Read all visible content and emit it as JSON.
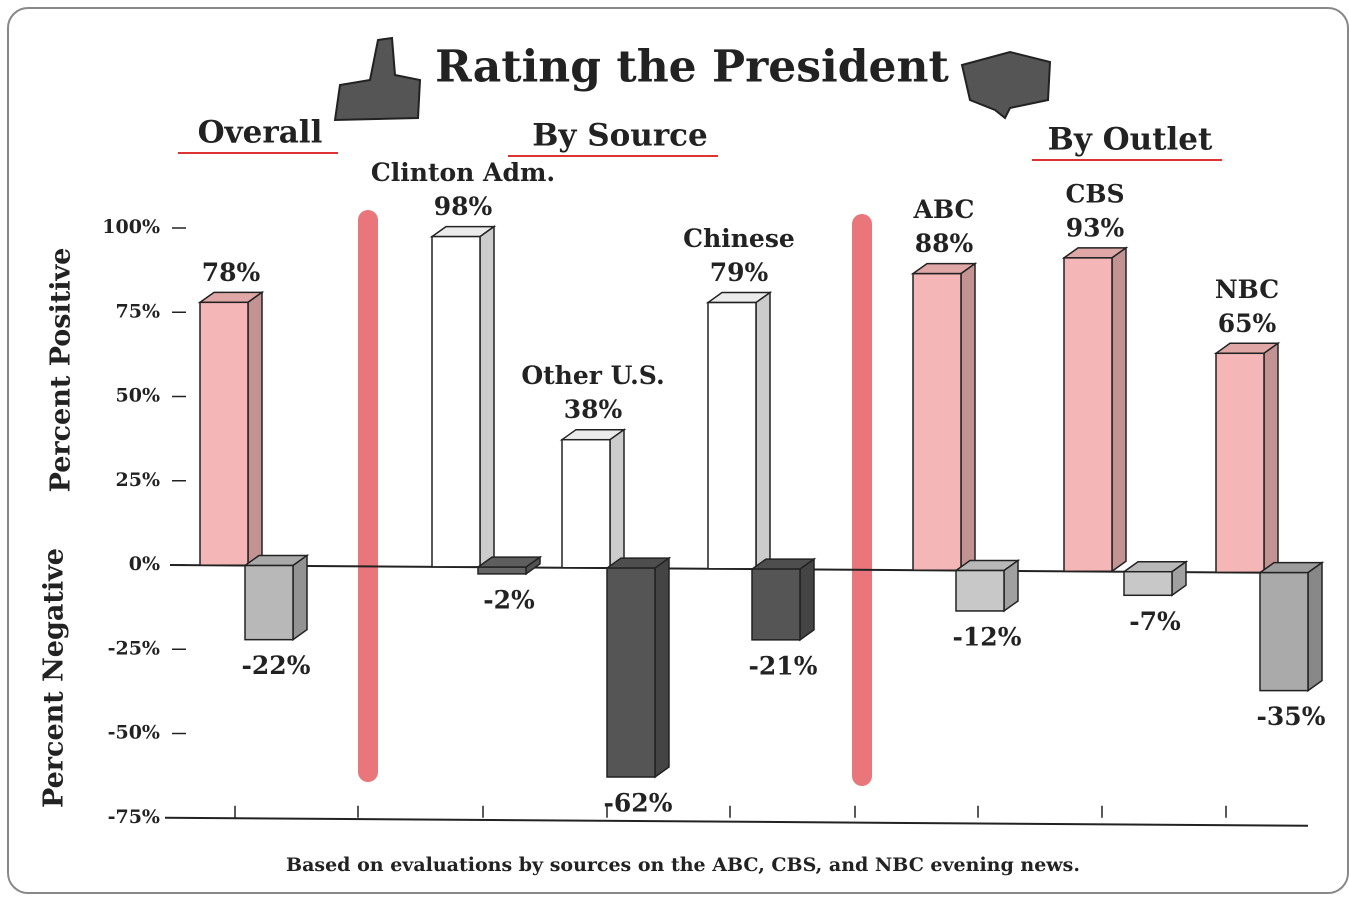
{
  "chart_data": {
    "type": "bar3d",
    "title": "Rating the President",
    "sections": [
      "Overall",
      "By Source",
      "By Outlet"
    ],
    "categories": [
      null,
      "Clinton Adm.",
      "Other U.S.",
      "Chinese",
      "ABC",
      "CBS",
      "NBC"
    ],
    "ylabel_positive": "Percent Positive",
    "ylabel_negative": "Percent Negative",
    "series": [
      {
        "values": [
          78,
          98,
          38,
          79,
          88,
          93,
          65
        ],
        "value_labels": [
          "78%",
          "98%",
          "38%",
          "79%",
          "88%",
          "93%",
          "65%"
        ],
        "colors": [
          "#f4b6b6",
          "#ffffff",
          "#ffffff",
          "#ffffff",
          "#f4b6b6",
          "#f4b6b6",
          "#f4b6b6"
        ]
      },
      {
        "values": [
          -22,
          -2,
          -62,
          -21,
          -12,
          -7,
          -35
        ],
        "value_labels": [
          "-22%",
          "-2%",
          "-62%",
          "-21%",
          "-12%",
          "-7%",
          "-35%"
        ],
        "colors": [
          "#b8b8b8",
          "#666666",
          "#555555",
          "#555555",
          "#c8c8c8",
          "#c8c8c8",
          "#aaaaaa"
        ]
      }
    ],
    "ylim": [
      -75,
      100
    ],
    "yticks": [
      {
        "value": 100,
        "label": "100%"
      },
      {
        "value": 75,
        "label": "75%"
      },
      {
        "value": 50,
        "label": "50%"
      },
      {
        "value": 25,
        "label": "25%"
      },
      {
        "value": 0,
        "label": "0%"
      },
      {
        "value": -25,
        "label": "-25%"
      },
      {
        "value": -50,
        "label": "-50%"
      },
      {
        "value": -75,
        "label": "-75%"
      }
    ],
    "note": "Based on evaluations by sources on the ABC, CBS, and NBC evening news."
  }
}
